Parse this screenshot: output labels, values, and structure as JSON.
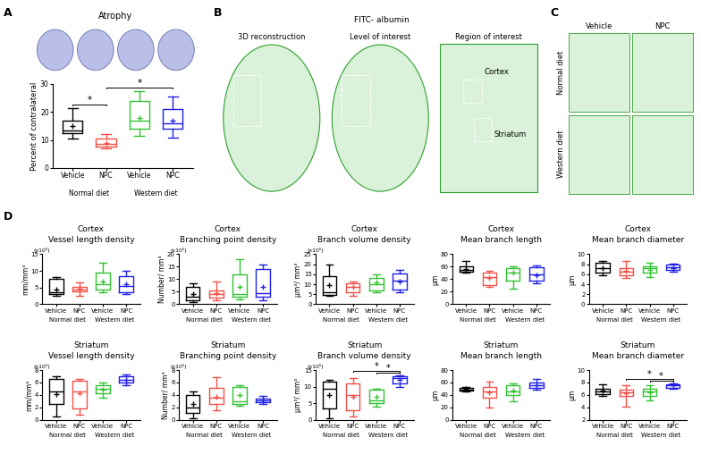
{
  "panel_labels": [
    "A",
    "B",
    "C",
    "D"
  ],
  "images": {
    "B": {
      "title": "FITC- albumin",
      "views": [
        "3D reconstruction",
        "Level of interest",
        "Region of interest"
      ],
      "regions": [
        "Cortex",
        "Striatum"
      ]
    },
    "C": {
      "columns": [
        "Vehicle",
        "NPC"
      ],
      "rows": [
        "Normal diet",
        "Western diet"
      ]
    }
  },
  "chart_data": [
    {
      "type": "box",
      "title": "Atrophy",
      "y_label": "Percent of contralateral",
      "categories": [
        "Vehicle",
        "NPC",
        "Vehicle",
        "NPC"
      ],
      "groups": [
        "Normal diet",
        "Western diet"
      ],
      "colors": [
        "#000000",
        "#f0524a",
        "#33c233",
        "#1f1fe6"
      ],
      "boxes": [
        {
          "min": 10.5,
          "q1": 12.5,
          "median": 13.5,
          "q3": 17,
          "max": 21.5,
          "mean": 15
        },
        {
          "min": 7,
          "q1": 7.5,
          "median": 8.5,
          "q3": 10.5,
          "max": 12,
          "mean": 9
        },
        {
          "min": 11.5,
          "q1": 14,
          "median": 17,
          "q3": 24,
          "max": 27.5,
          "mean": 18
        },
        {
          "min": 11,
          "q1": 14,
          "median": 16,
          "q3": 21,
          "max": 25.5,
          "mean": 17
        }
      ],
      "ylim": [
        0,
        30
      ],
      "yticks": [
        0,
        10,
        20,
        30
      ],
      "significance": [
        {
          "pair": [
            0,
            1
          ],
          "label": "*"
        },
        {
          "pair": [
            1,
            3
          ],
          "label": "*"
        }
      ]
    },
    {
      "type": "box",
      "title": "Cortex",
      "subtitle": "Vessel length density",
      "y_label": "mm/mm³",
      "y_unit_note": "(x10⁵)",
      "categories": [
        "Vehicle",
        "NPC",
        "Vehicle",
        "NPC"
      ],
      "groups": [
        "Normal diet",
        "Western diet"
      ],
      "colors": [
        "#000000",
        "#f0524a",
        "#33c233",
        "#1f1fe6"
      ],
      "boxes": [
        {
          "min": 2.5,
          "q1": 3,
          "median": 3.5,
          "q3": 7.5,
          "max": 8.2,
          "mean": 4.5
        },
        {
          "min": 2.5,
          "q1": 3.8,
          "median": 4.5,
          "q3": 5.3,
          "max": 6.5,
          "mean": 4.7
        },
        {
          "min": 3.5,
          "q1": 4.3,
          "median": 6,
          "q3": 9.5,
          "max": 12.5,
          "mean": 6.7
        },
        {
          "min": 3,
          "q1": 3.5,
          "median": 5.5,
          "q3": 8.5,
          "max": 10,
          "mean": 6
        }
      ],
      "ylim": [
        0,
        15
      ],
      "yticks": [
        0,
        5,
        10,
        15
      ],
      "significance": []
    },
    {
      "type": "box",
      "title": "Cortex",
      "subtitle": "Branching point density",
      "y_label": "Number/ mm³",
      "y_unit_note": "(x10⁵)",
      "categories": [
        "Vehicle",
        "NPC",
        "Vehicle",
        "NPC"
      ],
      "groups": [
        "Normal diet",
        "Western diet"
      ],
      "colors": [
        "#000000",
        "#f0524a",
        "#33c233",
        "#1f1fe6"
      ],
      "boxes": [
        {
          "min": 1,
          "q1": 1.5,
          "median": 3,
          "q3": 7,
          "max": 8.5,
          "mean": 4
        },
        {
          "min": 1.5,
          "q1": 2.5,
          "median": 4,
          "q3": 5.5,
          "max": 9,
          "mean": 4.5
        },
        {
          "min": 2,
          "q1": 3,
          "median": 4,
          "q3": 12,
          "max": 18,
          "mean": 7
        },
        {
          "min": 1.5,
          "q1": 3,
          "median": 4.5,
          "q3": 14,
          "max": 16,
          "mean": 7
        }
      ],
      "ylim": [
        0,
        20
      ],
      "yticks": [
        0,
        5,
        10,
        15,
        20
      ],
      "significance": []
    },
    {
      "type": "box",
      "title": "Cortex",
      "subtitle": "Branch volume density",
      "y_label": "μm³/ mm³",
      "y_unit_note": "(x10⁵)",
      "categories": [
        "Vehicle",
        "NPC",
        "Vehicle",
        "NPC"
      ],
      "groups": [
        "Normal diet",
        "Western diet"
      ],
      "colors": [
        "#000000",
        "#f0524a",
        "#33c233",
        "#1f1fe6"
      ],
      "boxes": [
        {
          "min": 4,
          "q1": 4.5,
          "median": 6,
          "q3": 14,
          "max": 20,
          "mean": 9.5
        },
        {
          "min": 4,
          "q1": 6,
          "median": 8.5,
          "q3": 10.5,
          "max": 11.5,
          "mean": 8.5
        },
        {
          "min": 6,
          "q1": 7,
          "median": 10,
          "q3": 13,
          "max": 15,
          "mean": 11
        },
        {
          "min": 6,
          "q1": 7.5,
          "median": 12,
          "q3": 15.5,
          "max": 17,
          "mean": 11.5
        }
      ],
      "ylim": [
        0,
        25
      ],
      "yticks": [
        0,
        5,
        10,
        15,
        20,
        25
      ],
      "significance": []
    },
    {
      "type": "box",
      "title": "Cortex",
      "subtitle": "Mean branch length",
      "y_label": "μm",
      "categories": [
        "Vehicle",
        "NPC",
        "Vehicle",
        "NPC"
      ],
      "groups": [
        "Normal diet",
        "Western diet"
      ],
      "colors": [
        "#000000",
        "#f0524a",
        "#33c233",
        "#1f1fe6"
      ],
      "boxes": [
        {
          "min": 50,
          "q1": 52,
          "median": 55,
          "q3": 60,
          "max": 69,
          "mean": 57
        },
        {
          "min": 28,
          "q1": 31,
          "median": 43,
          "q3": 50,
          "max": 53,
          "mean": 42
        },
        {
          "min": 25,
          "q1": 38,
          "median": 50,
          "q3": 58,
          "max": 60,
          "mean": 50
        },
        {
          "min": 34,
          "q1": 38,
          "median": 48,
          "q3": 59,
          "max": 62,
          "mean": 47
        }
      ],
      "ylim": [
        0,
        80
      ],
      "yticks": [
        0,
        20,
        40,
        60,
        80
      ],
      "significance": []
    },
    {
      "type": "box",
      "title": "Cortex",
      "subtitle": "Mean branch diameter",
      "y_label": "μm",
      "categories": [
        "Vehicle",
        "NPC",
        "Vehicle",
        "NPC"
      ],
      "groups": [
        "Normal diet",
        "Western diet"
      ],
      "colors": [
        "#000000",
        "#f0524a",
        "#33c233",
        "#1f1fe6"
      ],
      "boxes": [
        {
          "min": 5.8,
          "q1": 6.3,
          "median": 7.2,
          "q3": 8.3,
          "max": 8.7,
          "mean": 7.2
        },
        {
          "min": 5.3,
          "q1": 5.8,
          "median": 6.5,
          "q3": 7.3,
          "max": 8.7,
          "mean": 6.6
        },
        {
          "min": 5.4,
          "q1": 6.3,
          "median": 7.2,
          "q3": 7.6,
          "max": 8.3,
          "mean": 6.9
        },
        {
          "min": 6.5,
          "q1": 6.8,
          "median": 7.4,
          "q3": 7.9,
          "max": 8.1,
          "mean": 7.3
        }
      ],
      "ylim": [
        0,
        10
      ],
      "yticks": [
        0,
        2,
        4,
        6,
        8,
        10
      ],
      "significance": []
    },
    {
      "type": "box",
      "title": "Striatum",
      "subtitle": "Vessel length density",
      "y_label": "mm/mm³",
      "y_unit_note": "(x10⁵)",
      "categories": [
        "Vehicle",
        "NPC",
        "Vehicle",
        "NPC"
      ],
      "groups": [
        "Normal diet",
        "Western diet"
      ],
      "colors": [
        "#000000",
        "#f0524a",
        "#33c233",
        "#1f1fe6"
      ],
      "boxes": [
        {
          "min": 0.5,
          "q1": 2.5,
          "median": 4.5,
          "q3": 6.5,
          "max": 7,
          "mean": 4.2
        },
        {
          "min": 0.8,
          "q1": 1.8,
          "median": 4.5,
          "q3": 6.3,
          "max": 6.5,
          "mean": 4.3
        },
        {
          "min": 3.5,
          "q1": 4.3,
          "median": 5,
          "q3": 5.5,
          "max": 6,
          "mean": 4.8
        },
        {
          "min": 5.5,
          "q1": 6,
          "median": 6.4,
          "q3": 7,
          "max": 7.3,
          "mean": 6.4
        }
      ],
      "ylim": [
        0,
        8
      ],
      "yticks": [
        0,
        2,
        4,
        6,
        8
      ],
      "significance": []
    },
    {
      "type": "box",
      "title": "Striatum",
      "subtitle": "Branching point density",
      "y_label": "Number/ mm³",
      "y_unit_note": "(x10⁵)",
      "categories": [
        "Vehicle",
        "NPC",
        "Vehicle",
        "NPC"
      ],
      "groups": [
        "Normal diet",
        "Western diet"
      ],
      "colors": [
        "#000000",
        "#f0524a",
        "#33c233",
        "#1f1fe6"
      ],
      "boxes": [
        {
          "min": 0.3,
          "q1": 1.2,
          "median": 2,
          "q3": 4,
          "max": 4.5,
          "mean": 2.5
        },
        {
          "min": 1.5,
          "q1": 2.5,
          "median": 3.5,
          "q3": 5.2,
          "max": 6.8,
          "mean": 3.7
        },
        {
          "min": 2.3,
          "q1": 2.6,
          "median": 3,
          "q3": 5.3,
          "max": 5.5,
          "mean": 4
        },
        {
          "min": 2.5,
          "q1": 2.9,
          "median": 3.2,
          "q3": 3.4,
          "max": 3.8,
          "mean": 3.2
        }
      ],
      "ylim": [
        0,
        8
      ],
      "yticks": [
        0,
        2,
        4,
        6,
        8
      ],
      "significance": []
    },
    {
      "type": "box",
      "title": "Striatum",
      "subtitle": "Branch volume density",
      "y_label": "μm³/ mm³",
      "y_unit_note": "(x10⁵)",
      "categories": [
        "Vehicle",
        "NPC",
        "Vehicle",
        "NPC"
      ],
      "groups": [
        "Normal diet",
        "Western diet"
      ],
      "colors": [
        "#000000",
        "#f0524a",
        "#33c233",
        "#1f1fe6"
      ],
      "boxes": [
        {
          "min": 0.5,
          "q1": 3.5,
          "median": 9.5,
          "q3": 11.5,
          "max": 12,
          "mean": 7.5
        },
        {
          "min": 1,
          "q1": 3,
          "median": 7.5,
          "q3": 11,
          "max": 12.5,
          "mean": 7
        },
        {
          "min": 4,
          "q1": 5,
          "median": 6,
          "q3": 9,
          "max": 9.5,
          "mean": 7
        },
        {
          "min": 10,
          "q1": 11,
          "median": 12.5,
          "q3": 13,
          "max": 13.5,
          "mean": 12
        }
      ],
      "ylim": [
        0,
        15
      ],
      "yticks": [
        0,
        5,
        10,
        15
      ],
      "significance": [
        {
          "pair": [
            2,
            3
          ],
          "label": "*"
        },
        {
          "pair": [
            1,
            3
          ],
          "label": "*"
        }
      ]
    },
    {
      "type": "box",
      "title": "Striatum",
      "subtitle": "Mean branch length",
      "y_label": "μm",
      "categories": [
        "Vehicle",
        "NPC",
        "Vehicle",
        "NPC"
      ],
      "groups": [
        "Normal diet",
        "Western diet"
      ],
      "colors": [
        "#000000",
        "#f0524a",
        "#33c233",
        "#1f1fe6"
      ],
      "boxes": [
        {
          "min": 45,
          "q1": 47,
          "median": 49,
          "q3": 51,
          "max": 53,
          "mean": 50
        },
        {
          "min": 20,
          "q1": 35,
          "median": 45,
          "q3": 53,
          "max": 61,
          "mean": 44
        },
        {
          "min": 30,
          "q1": 40,
          "median": 45,
          "q3": 56,
          "max": 58,
          "mean": 47
        },
        {
          "min": 48,
          "q1": 52,
          "median": 55,
          "q3": 60,
          "max": 65,
          "mean": 55
        }
      ],
      "ylim": [
        0,
        80
      ],
      "yticks": [
        0,
        20,
        40,
        60,
        80
      ],
      "significance": []
    },
    {
      "type": "box",
      "title": "Striatum",
      "subtitle": "Mean branch diameter",
      "y_label": "μm",
      "categories": [
        "Vehicle",
        "NPC",
        "Vehicle",
        "NPC"
      ],
      "groups": [
        "Normal diet",
        "Western diet"
      ],
      "colors": [
        "#000000",
        "#f0524a",
        "#33c233",
        "#1f1fe6"
      ],
      "boxes": [
        {
          "min": 5.9,
          "q1": 6.2,
          "median": 6.5,
          "q3": 7,
          "max": 7.7,
          "mean": 6.7
        },
        {
          "min": 4.2,
          "q1": 5.9,
          "median": 6.4,
          "q3": 6.9,
          "max": 7.6,
          "mean": 6.3
        },
        {
          "min": 5.2,
          "q1": 5.9,
          "median": 6.5,
          "q3": 7,
          "max": 7.6,
          "mean": 6.4
        },
        {
          "min": 7,
          "q1": 7.2,
          "median": 7.5,
          "q3": 7.7,
          "max": 7.9,
          "mean": 7.5
        }
      ],
      "ylim": [
        2,
        10
      ],
      "yticks": [
        2,
        4,
        6,
        8,
        10
      ],
      "significance": [
        {
          "pair": [
            2,
            3
          ],
          "label": "*"
        },
        {
          "pair": [
            1,
            3
          ],
          "label": "*"
        }
      ]
    }
  ]
}
